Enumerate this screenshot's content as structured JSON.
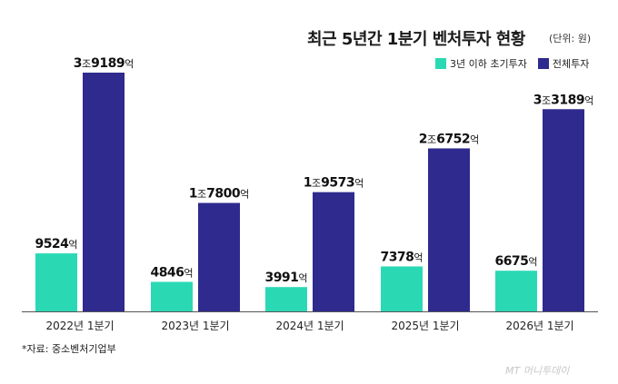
{
  "chart_data": {
    "type": "bar",
    "title": "최근 5년간 1분기 벤처투자 현황",
    "unit_note": "(단위: 원)",
    "categories": [
      "2022년 1분기",
      "2023년 1분기",
      "2024년 1분기",
      "2025년 1분기",
      "2026년 1분기"
    ],
    "series": [
      {
        "name": "3년 이하 초기투자",
        "color": "#2ad9b4",
        "values": [
          9524,
          4846,
          3991,
          7378,
          6675
        ],
        "labels": [
          [
            {
              "t": "9524",
              "b": true
            },
            {
              "t": "억",
              "b": false
            }
          ],
          [
            {
              "t": "4846",
              "b": true
            },
            {
              "t": "억",
              "b": false
            }
          ],
          [
            {
              "t": "3991",
              "b": true
            },
            {
              "t": "억",
              "b": false
            }
          ],
          [
            {
              "t": "7378",
              "b": true
            },
            {
              "t": "억",
              "b": false
            }
          ],
          [
            {
              "t": "6675",
              "b": true
            },
            {
              "t": "억",
              "b": false
            }
          ]
        ]
      },
      {
        "name": "전체투자",
        "color": "#2e2a8e",
        "values": [
          39189,
          17800,
          19573,
          26752,
          33189
        ],
        "labels": [
          [
            {
              "t": "3",
              "b": true
            },
            {
              "t": "조",
              "b": false
            },
            {
              "t": "9189",
              "b": true
            },
            {
              "t": "억",
              "b": false
            }
          ],
          [
            {
              "t": "1",
              "b": true
            },
            {
              "t": "조",
              "b": false
            },
            {
              "t": "7800",
              "b": true
            },
            {
              "t": "억",
              "b": false
            }
          ],
          [
            {
              "t": "1",
              "b": true
            },
            {
              "t": "조",
              "b": false
            },
            {
              "t": "9573",
              "b": true
            },
            {
              "t": "억",
              "b": false
            }
          ],
          [
            {
              "t": "2",
              "b": true
            },
            {
              "t": "조",
              "b": false
            },
            {
              "t": "6752",
              "b": true
            },
            {
              "t": "억",
              "b": false
            }
          ],
          [
            {
              "t": "3",
              "b": true
            },
            {
              "t": "조",
              "b": false
            },
            {
              "t": "3189",
              "b": true
            },
            {
              "t": "억",
              "b": false
            }
          ]
        ]
      }
    ],
    "legend_position": "top-right",
    "grid": false,
    "baseline_color": "#555555"
  },
  "source": "*자료: 중소벤처기업부",
  "watermark": "MT 머니투데이"
}
